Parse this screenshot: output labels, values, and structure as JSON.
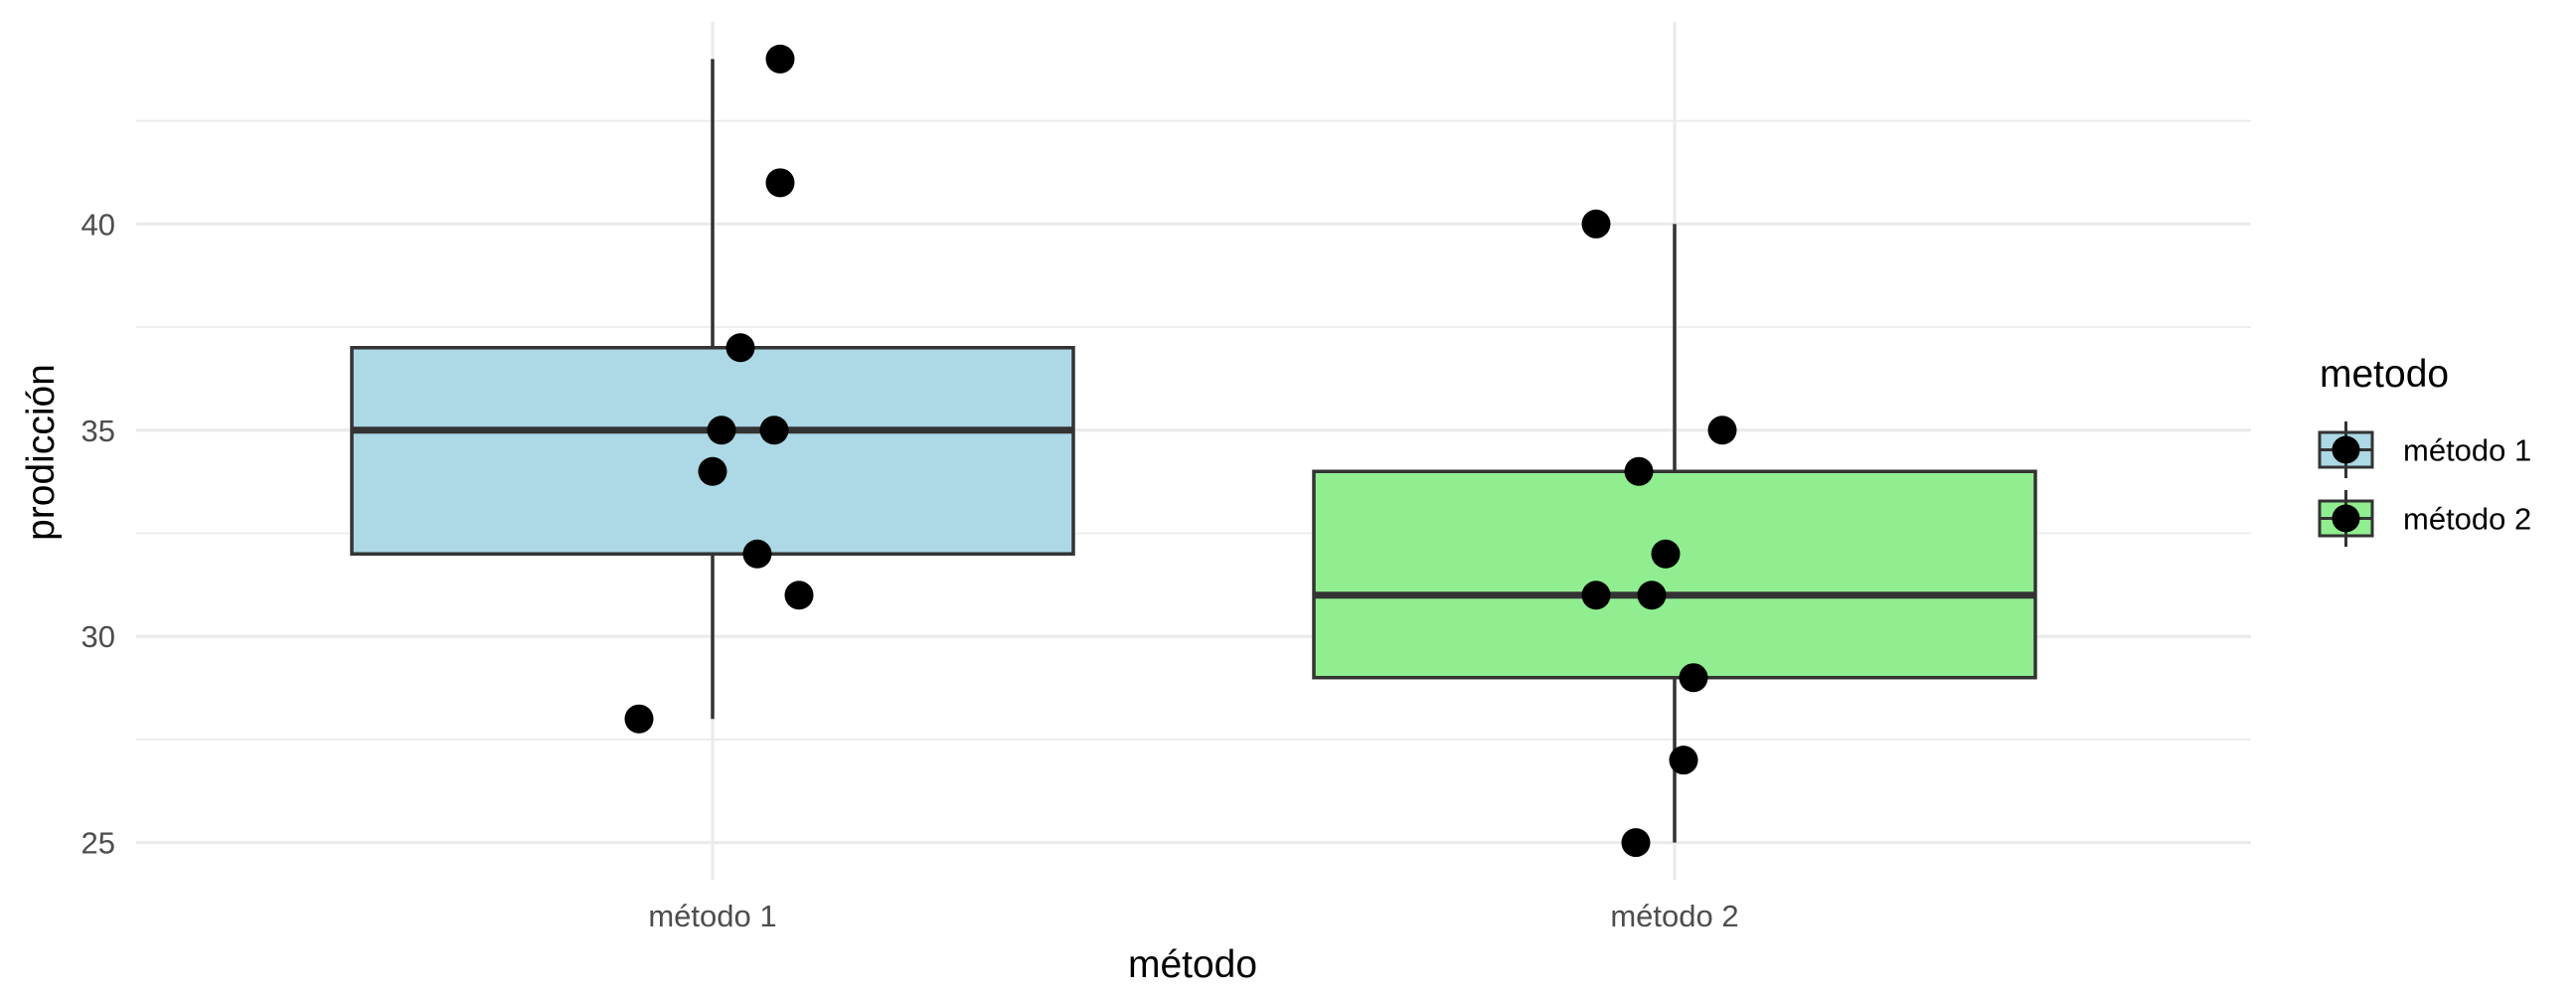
{
  "chart_data": {
    "type": "boxplot",
    "xlabel": "método",
    "ylabel": "prodicción",
    "categories": [
      "método 1",
      "método 2"
    ],
    "ylim": [
      24.1,
      44.9
    ],
    "y_ticks": [
      25,
      30,
      35,
      40
    ],
    "grid": true,
    "legend": {
      "title": "metodo",
      "position": "right",
      "entries": [
        "método 1",
        "método 2"
      ]
    },
    "colors": {
      "método 1": "#add8e6",
      "método 2": "#90ee90",
      "box_outline": "#333333",
      "points": "#000000"
    },
    "boxes": [
      {
        "name": "método 1",
        "whisker_low": 28,
        "q1": 32,
        "median": 35,
        "q3": 37,
        "whisker_high": 44
      },
      {
        "name": "método 2",
        "whisker_low": 25,
        "q1": 29,
        "median": 31,
        "q3": 34,
        "whisker_high": 40
      }
    ],
    "points": [
      {
        "group": "método 1",
        "values": [
          44,
          41,
          37,
          35,
          35,
          34,
          32,
          31,
          28
        ]
      },
      {
        "group": "método 2",
        "values": [
          40,
          35,
          34,
          32,
          31,
          31,
          29,
          27,
          25
        ]
      }
    ]
  }
}
